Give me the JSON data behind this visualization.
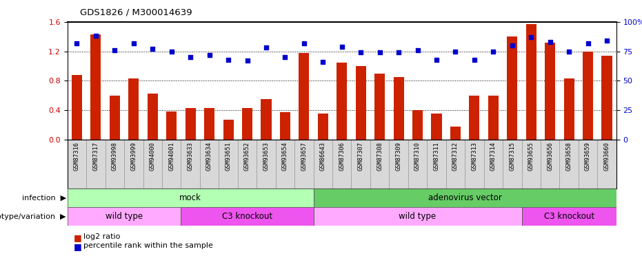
{
  "title": "GDS1826 / M300014639",
  "samples": [
    "GSM87316",
    "GSM87317",
    "GSM93998",
    "GSM93999",
    "GSM94000",
    "GSM94001",
    "GSM93633",
    "GSM93634",
    "GSM93651",
    "GSM93652",
    "GSM93653",
    "GSM93654",
    "GSM93657",
    "GSM86643",
    "GSM87306",
    "GSM87307",
    "GSM87308",
    "GSM87309",
    "GSM87310",
    "GSM87311",
    "GSM87312",
    "GSM87313",
    "GSM87314",
    "GSM87315",
    "GSM93655",
    "GSM93656",
    "GSM93658",
    "GSM93659",
    "GSM93660"
  ],
  "log2_ratio": [
    0.88,
    1.43,
    0.6,
    0.83,
    0.63,
    0.38,
    0.43,
    0.43,
    0.27,
    0.43,
    0.55,
    0.37,
    1.18,
    0.35,
    1.05,
    1.0,
    0.9,
    0.85,
    0.4,
    0.35,
    0.18,
    0.6,
    0.6,
    1.4,
    1.57,
    1.32,
    0.83,
    1.2,
    1.14
  ],
  "percentile": [
    82,
    88,
    76,
    82,
    77,
    75,
    70,
    72,
    68,
    67,
    78,
    70,
    82,
    66,
    79,
    74,
    74,
    74,
    76,
    68,
    75,
    68,
    75,
    80,
    87,
    83,
    75,
    82,
    84
  ],
  "infection_groups": [
    {
      "label": "mock",
      "start": 0,
      "end": 13,
      "color": "#b3ffb3"
    },
    {
      "label": "adenovirus vector",
      "start": 13,
      "end": 29,
      "color": "#66cc66"
    }
  ],
  "genotype_groups": [
    {
      "label": "wild type",
      "start": 0,
      "end": 6,
      "color": "#ffaaff"
    },
    {
      "label": "C3 knockout",
      "start": 6,
      "end": 13,
      "color": "#ee55ee"
    },
    {
      "label": "wild type",
      "start": 13,
      "end": 24,
      "color": "#ffaaff"
    },
    {
      "label": "C3 knockout",
      "start": 24,
      "end": 29,
      "color": "#ee55ee"
    }
  ],
  "bar_color": "#cc2200",
  "dot_color": "#0000cc",
  "ylim_left": [
    0,
    1.6
  ],
  "ylim_right": [
    0,
    100
  ],
  "yticks_left": [
    0,
    0.4,
    0.8,
    1.2,
    1.6
  ],
  "yticks_right": [
    0,
    25,
    50,
    75,
    100
  ],
  "legend_bar_label": "log2 ratio",
  "legend_dot_label": "percentile rank within the sample",
  "infection_label": "infection",
  "genotype_label": "genotype/variation"
}
